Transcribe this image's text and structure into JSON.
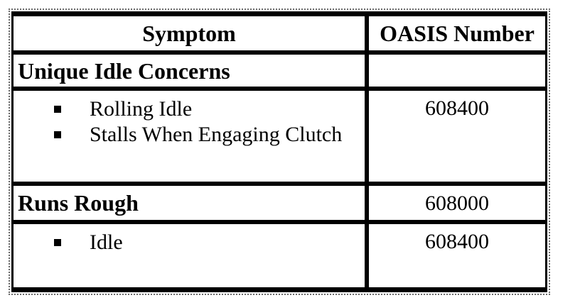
{
  "table": {
    "header": {
      "symptom": "Symptom",
      "oasis": "OASIS Number"
    },
    "rows": [
      {
        "kind": "section",
        "symptom": "Unique Idle Concerns",
        "oasis": ""
      },
      {
        "kind": "bullets",
        "bullets": [
          "Rolling Idle",
          "Stalls When Engaging Clutch"
        ],
        "oasis": "608400"
      },
      {
        "kind": "section",
        "symptom": "Runs Rough",
        "oasis": "608000"
      },
      {
        "kind": "bullets",
        "bullets": [
          "Idle"
        ],
        "oasis": "608400"
      }
    ]
  },
  "colors": {
    "border": "#000000",
    "text": "#000000",
    "background": "#ffffff",
    "boundary_marker": "#6b6b6b"
  }
}
